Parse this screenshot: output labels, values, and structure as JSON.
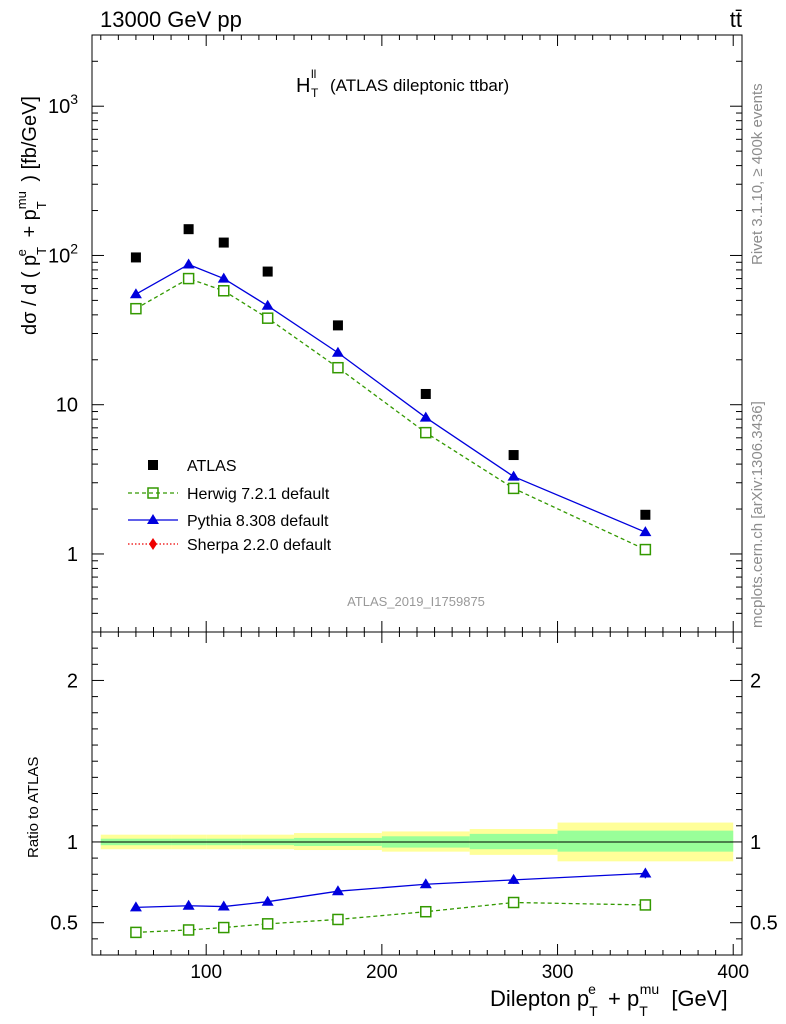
{
  "header": {
    "energy_label": "13000 GeV pp",
    "process_label": "tt̄"
  },
  "side_labels": {
    "rivet": "Rivet 3.1.10, ≥ 400k events",
    "mcplots": "mcplots.cern.ch [arXiv:1306.3436]"
  },
  "main_title": {
    "symbol": "H",
    "sup": "ll",
    "sub": "T",
    "text": "(ATLAS dileptonic ttbar)"
  },
  "analysis_id": "ATLAS_2019_I1759875",
  "axes": {
    "main_ylabel": "dσ / d ( p",
    "ratio_ylabel": "Ratio to ATLAS",
    "xlabel": "Dilepton p"
  },
  "legend": {
    "atlas": "ATLAS",
    "herwig": "Herwig 7.2.1 default",
    "pythia": "Pythia 8.308 default",
    "sherpa": "Sherpa 2.2.0 default"
  },
  "colors": {
    "herwig": "#339900",
    "pythia": "#0000dd",
    "sherpa": "#ee0000",
    "band_inner": "#99ff99",
    "band_outer": "#ffff99"
  },
  "chart_data": [
    {
      "type": "scatter",
      "panel": "main",
      "log_y": true,
      "xlim": [
        35,
        405
      ],
      "ylim": [
        0.3,
        3000
      ],
      "y_ticks": [
        "1",
        "10",
        "10^2",
        "10^3"
      ],
      "x": [
        60,
        90,
        110,
        135,
        175,
        225,
        275,
        350
      ],
      "series": [
        {
          "name": "ATLAS",
          "values": [
            97,
            150,
            122,
            78,
            34,
            11.8,
            4.6,
            1.83
          ]
        },
        {
          "name": "Herwig 7.2.1 default",
          "values": [
            44,
            70,
            58,
            38,
            17.7,
            6.5,
            2.75,
            1.07
          ]
        },
        {
          "name": "Pythia 8.308 default",
          "values": [
            55,
            87,
            70,
            46,
            22.3,
            8.2,
            3.3,
            1.4
          ]
        }
      ],
      "legend_position": "bottom-left"
    },
    {
      "type": "line",
      "panel": "ratio",
      "xlim": [
        35,
        405
      ],
      "ylim": [
        0.3,
        2.3
      ],
      "y_ticks": [
        "0.5",
        "1",
        "2"
      ],
      "x_ticks": [
        "100",
        "200",
        "300",
        "400"
      ],
      "x": [
        60,
        90,
        110,
        135,
        175,
        225,
        275,
        350
      ],
      "series": [
        {
          "name": "Herwig 7.2.1 default",
          "values": [
            0.44,
            0.455,
            0.47,
            0.493,
            0.52,
            0.568,
            0.625,
            0.61
          ]
        },
        {
          "name": "Pythia 8.308 default",
          "values": [
            0.595,
            0.605,
            0.6,
            0.63,
            0.695,
            0.738,
            0.765,
            0.805
          ]
        }
      ],
      "bands": {
        "edges": [
          40,
          80,
          100,
          120,
          150,
          200,
          250,
          300,
          400
        ],
        "inner": [
          [
            0.98,
            1.02
          ],
          [
            0.98,
            1.02
          ],
          [
            0.98,
            1.02
          ],
          [
            0.98,
            1.02
          ],
          [
            0.975,
            1.025
          ],
          [
            0.965,
            1.035
          ],
          [
            0.955,
            1.05
          ],
          [
            0.94,
            1.07
          ]
        ],
        "outer": [
          [
            0.955,
            1.045
          ],
          [
            0.955,
            1.045
          ],
          [
            0.955,
            1.045
          ],
          [
            0.955,
            1.045
          ],
          [
            0.95,
            1.055
          ],
          [
            0.94,
            1.065
          ],
          [
            0.92,
            1.08
          ],
          [
            0.88,
            1.12
          ]
        ]
      }
    }
  ]
}
